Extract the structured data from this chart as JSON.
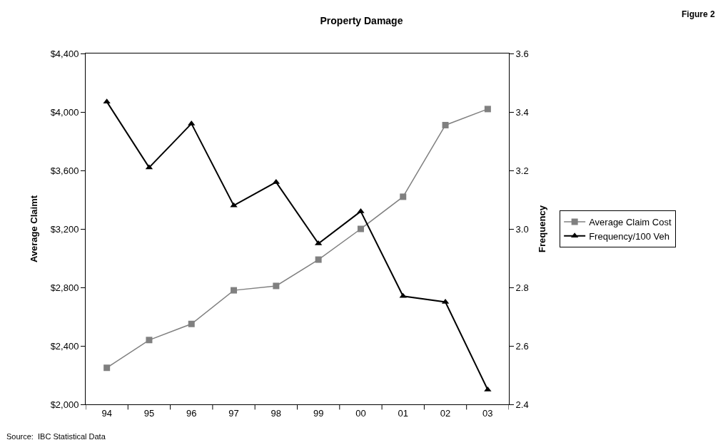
{
  "chart_data": {
    "type": "line",
    "title": "Property Damage",
    "xlabel": null,
    "ylabel": "Average Claimt",
    "y2label": "Frequency",
    "annotations": [
      "Figure 2",
      "Source:  IBC Statistical Data"
    ],
    "categories": [
      "94",
      "95",
      "96",
      "97",
      "98",
      "99",
      "00",
      "01",
      "02",
      "03"
    ],
    "series": [
      {
        "name": "Average Claim Cost",
        "color": "#808080",
        "marker": "square",
        "values": [
          2250,
          2440,
          2550,
          2780,
          2810,
          2990,
          3200,
          3420,
          3910,
          4020
        ]
      },
      {
        "name": "Frequency/100 Veh",
        "color": "#000000",
        "marker": "triangle",
        "axis": "y2",
        "values": [
          3.435,
          3.21,
          3.36,
          3.08,
          3.16,
          2.95,
          3.06,
          2.77,
          2.75,
          2.45
        ]
      }
    ],
    "ylim": [
      2000,
      4400
    ],
    "yticks": [
      {
        "value": 2000,
        "label": "$2,000"
      },
      {
        "value": 2400,
        "label": "$2,400"
      },
      {
        "value": 2800,
        "label": "$2,800"
      },
      {
        "value": 3200,
        "label": "$3,200"
      },
      {
        "value": 3600,
        "label": "$3,600"
      },
      {
        "value": 4000,
        "label": "$4,000"
      },
      {
        "value": 4400,
        "label": "$4,400"
      }
    ],
    "y2lim": [
      2.4,
      3.6
    ],
    "y2ticks": [
      {
        "value": 2.4,
        "label": "2.4"
      },
      {
        "value": 2.6,
        "label": "2.6"
      },
      {
        "value": 2.8,
        "label": "2.8"
      },
      {
        "value": 3.0,
        "label": "3.0"
      },
      {
        "value": 3.2,
        "label": "3.2"
      },
      {
        "value": 3.4,
        "label": "3.4"
      },
      {
        "value": 3.6,
        "label": "3.6"
      }
    ],
    "legend": "right",
    "line_style": "solid"
  }
}
